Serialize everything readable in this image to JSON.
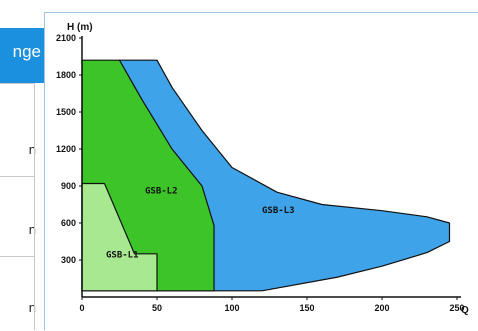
{
  "side_table": {
    "header": "nge",
    "cells": [
      "n",
      "n",
      "n"
    ],
    "header_color": "#1b90de"
  },
  "chart_data": {
    "type": "area",
    "xlabel": "Q",
    "ylabel": "H (m)",
    "xlim": [
      0,
      250
    ],
    "ylim": [
      0,
      2100
    ],
    "x_ticks": [
      0,
      50,
      100,
      150,
      200,
      250
    ],
    "y_ticks": [
      300,
      600,
      900,
      1200,
      1500,
      1800,
      2100
    ],
    "grid": false,
    "series": [
      {
        "name": "GSB-L3",
        "color": "#3ea3e8",
        "polygon": [
          [
            25,
            1920
          ],
          [
            50,
            1920
          ],
          [
            60,
            1700
          ],
          [
            80,
            1350
          ],
          [
            100,
            1050
          ],
          [
            130,
            850
          ],
          [
            160,
            750
          ],
          [
            200,
            700
          ],
          [
            230,
            650
          ],
          [
            245,
            600
          ],
          [
            245,
            450
          ],
          [
            230,
            360
          ],
          [
            200,
            250
          ],
          [
            170,
            160
          ],
          [
            120,
            50
          ],
          [
            25,
            50
          ]
        ]
      },
      {
        "name": "GSB-L2",
        "color": "#3cc429",
        "polygon": [
          [
            0,
            1920
          ],
          [
            25,
            1920
          ],
          [
            40,
            1600
          ],
          [
            60,
            1200
          ],
          [
            80,
            900
          ],
          [
            88,
            580
          ],
          [
            88,
            50
          ],
          [
            0,
            50
          ]
        ]
      },
      {
        "name": "GSB-L1",
        "color": "#a8e890",
        "polygon": [
          [
            0,
            920
          ],
          [
            15,
            920
          ],
          [
            35,
            350
          ],
          [
            50,
            350
          ],
          [
            50,
            50
          ],
          [
            0,
            50
          ]
        ]
      }
    ],
    "labels": [
      {
        "text": "GSB-L3",
        "x": 120,
        "y": 680
      },
      {
        "text": "GSB-L2",
        "x": 42,
        "y": 840
      },
      {
        "text": "GSB-L1",
        "x": 16,
        "y": 320
      }
    ]
  }
}
